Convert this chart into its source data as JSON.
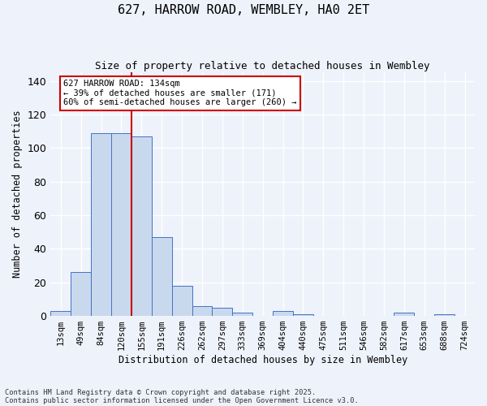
{
  "title_line1": "627, HARROW ROAD, WEMBLEY, HA0 2ET",
  "title_line2": "Size of property relative to detached houses in Wembley",
  "xlabel": "Distribution of detached houses by size in Wembley",
  "ylabel": "Number of detached properties",
  "footnote1": "Contains HM Land Registry data © Crown copyright and database right 2025.",
  "footnote2": "Contains public sector information licensed under the Open Government Licence v3.0.",
  "bin_labels": [
    "13sqm",
    "49sqm",
    "84sqm",
    "120sqm",
    "155sqm",
    "191sqm",
    "226sqm",
    "262sqm",
    "297sqm",
    "333sqm",
    "369sqm",
    "404sqm",
    "440sqm",
    "475sqm",
    "511sqm",
    "546sqm",
    "582sqm",
    "617sqm",
    "653sqm",
    "688sqm",
    "724sqm"
  ],
  "bar_values": [
    3,
    26,
    109,
    109,
    107,
    47,
    18,
    6,
    5,
    2,
    0,
    3,
    1,
    0,
    0,
    0,
    0,
    2,
    0,
    1,
    0
  ],
  "bar_color": "#c9d9ed",
  "bar_edge_color": "#4472c4",
  "background_color": "#eef2fb",
  "grid_color": "#ffffff",
  "red_line_x": 3.5,
  "annotation_text_line1": "627 HARROW ROAD: 134sqm",
  "annotation_text_line2": "← 39% of detached houses are smaller (171)",
  "annotation_text_line3": "60% of semi-detached houses are larger (260) →",
  "annotation_box_color": "#ffffff",
  "annotation_box_edge": "#cc0000",
  "red_line_color": "#cc0000",
  "ylim": [
    0,
    145
  ],
  "yticks": [
    0,
    20,
    40,
    60,
    80,
    100,
    120,
    140
  ]
}
